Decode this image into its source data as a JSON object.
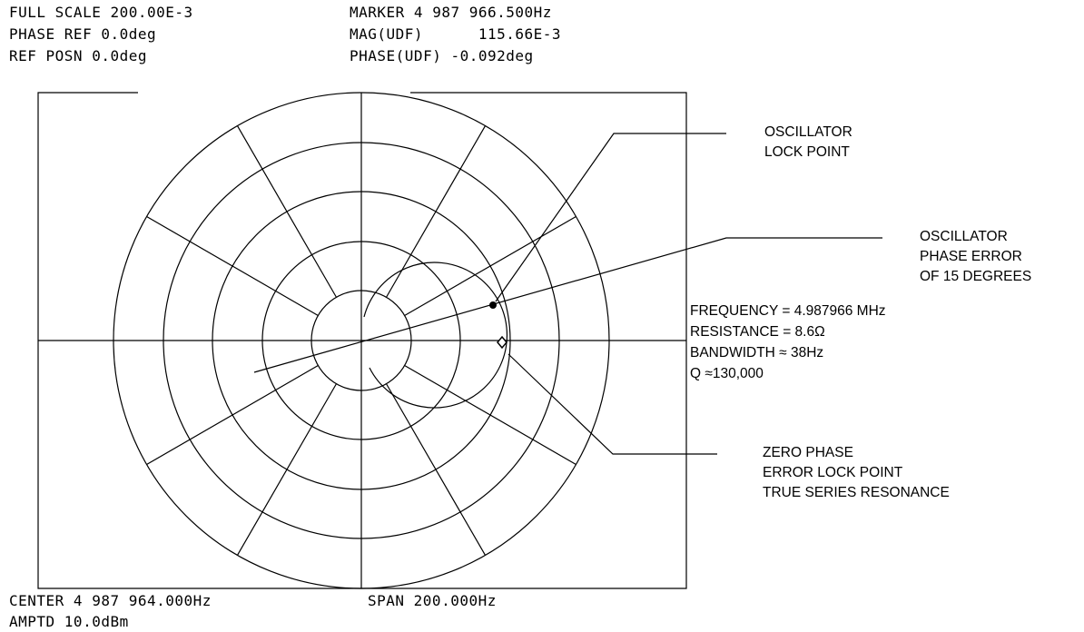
{
  "header": {
    "left": [
      "FULL SCALE 200.00E-3",
      "PHASE REF 0.0deg",
      "REF POSN 0.0deg"
    ],
    "right": [
      "MARKER 4 987 966.500Hz",
      "MAG(UDF)      115.66E-3",
      "PHASE(UDF) -0.092deg"
    ]
  },
  "footer": {
    "left": [
      "CENTER 4 987 964.000Hz",
      "AMPTD 10.0dBm"
    ],
    "right": "SPAN 200.000Hz"
  },
  "annotations": {
    "lock_point": [
      "OSCILLATOR",
      "LOCK POINT"
    ],
    "phase_error": [
      "OSCILLATOR",
      "PHASE ERROR",
      "OF 15 DEGREES"
    ],
    "specs": [
      "FREQUENCY = 4.987966 MHz",
      "RESISTANCE = 8.6Ω",
      "BANDWIDTH ≈ 38Hz",
      "Q ≈130,000"
    ],
    "zero_phase": [
      "ZERO PHASE",
      "ERROR LOCK POINT",
      "TRUE SERIES RESONANCE"
    ]
  }
}
